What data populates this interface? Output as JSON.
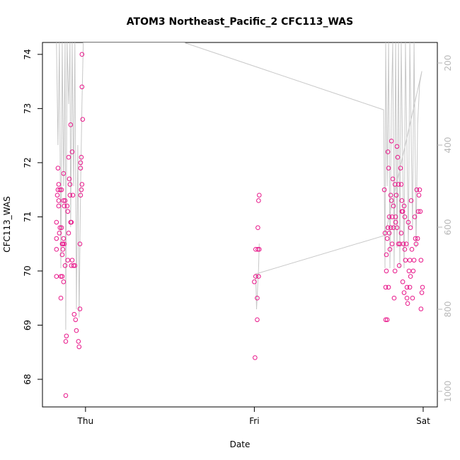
{
  "chart_data": {
    "type": "scatter",
    "title": "ATOM3 Northeast_Pacific_2 CFC113_WAS",
    "xlabel": "Date",
    "ylabel": "CFC113_WAS",
    "xlim": [
      -0.255,
      2.084
    ],
    "ylim": [
      67.49,
      74.22
    ],
    "y2lim": [
      1038,
      150
    ],
    "xticks": [
      {
        "value": 0,
        "label": "Thu"
      },
      {
        "value": 1,
        "label": "Fri"
      },
      {
        "value": 2,
        "label": "Sat"
      }
    ],
    "yticks": [
      68,
      69,
      70,
      71,
      72,
      73,
      74
    ],
    "y2ticks": [
      200,
      400,
      600,
      800,
      1000
    ],
    "series": [
      {
        "color": "#e8178a",
        "x": [
          -0.172,
          -0.172,
          -0.172,
          -0.172,
          -0.167,
          -0.163,
          -0.163,
          -0.159,
          -0.159,
          -0.159,
          -0.155,
          -0.151,
          -0.151,
          -0.146,
          -0.146,
          -0.142,
          -0.142,
          -0.138,
          -0.138,
          -0.138,
          -0.134,
          -0.134,
          -0.13,
          -0.13,
          -0.13,
          -0.13,
          -0.126,
          -0.126,
          -0.121,
          -0.121,
          -0.117,
          -0.117,
          -0.113,
          -0.109,
          -0.105,
          -0.105,
          -0.1,
          -0.1,
          -0.096,
          -0.092,
          -0.092,
          -0.088,
          -0.088,
          -0.084,
          -0.084,
          -0.079,
          -0.079,
          -0.075,
          -0.071,
          -0.067,
          -0.063,
          -0.059,
          -0.054,
          -0.042,
          -0.038,
          -0.033,
          -0.033,
          -0.029,
          -0.029,
          -0.029,
          -0.025,
          -0.025,
          -0.021,
          -0.021,
          -0.021,
          -0.017,
          1.0,
          1.004,
          1.008,
          1.008,
          1.017,
          1.017,
          1.021,
          1.021,
          1.025,
          1.029,
          1.025,
          1.029,
          1.77,
          1.774,
          1.778,
          1.778,
          1.782,
          1.782,
          1.787,
          1.787,
          1.791,
          1.791,
          1.795,
          1.795,
          1.799,
          1.799,
          1.803,
          1.808,
          1.808,
          1.812,
          1.812,
          1.816,
          1.816,
          1.82,
          1.824,
          1.824,
          1.828,
          1.833,
          1.833,
          1.837,
          1.837,
          1.841,
          1.845,
          1.845,
          1.849,
          1.854,
          1.854,
          1.858,
          1.862,
          1.866,
          1.87,
          1.87,
          1.874,
          1.874,
          1.879,
          1.879,
          1.883,
          1.887,
          1.887,
          1.891,
          1.891,
          1.895,
          1.9,
          1.904,
          1.904,
          1.908,
          1.912,
          1.916,
          1.921,
          1.921,
          1.925,
          1.925,
          1.929,
          1.933,
          1.937,
          1.941,
          1.946,
          1.95,
          1.954,
          1.958,
          1.962,
          1.967,
          1.971,
          1.975,
          1.979,
          1.983,
          1.987,
          1.987,
          1.992,
          1.996
        ],
        "values": [
          70.9,
          70.6,
          70.4,
          69.9,
          71.4,
          71.5,
          71.9,
          71.6,
          71.3,
          71.2,
          70.7,
          71.5,
          70.8,
          69.9,
          69.5,
          71.5,
          70.8,
          70.5,
          70.3,
          69.9,
          70.5,
          70.4,
          71.8,
          71.3,
          70.6,
          69.8,
          71.2,
          70.5,
          71.3,
          70.1,
          67.7,
          68.7,
          68.8,
          71.2,
          71.1,
          70.2,
          72.1,
          70.7,
          71.7,
          71.4,
          71.6,
          72.7,
          70.9,
          70.9,
          70.1,
          72.2,
          70.2,
          71.4,
          70.1,
          69.2,
          70.1,
          69.1,
          68.9,
          68.7,
          68.6,
          69.3,
          70.5,
          71.4,
          71.9,
          72.0,
          72.1,
          71.5,
          71.6,
          74.0,
          73.4,
          72.8,
          69.8,
          68.4,
          69.9,
          70.4,
          69.1,
          69.5,
          70.8,
          70.4,
          71.3,
          71.4,
          69.9,
          70.4,
          71.5,
          70.7,
          69.7,
          69.1,
          70.3,
          70.0,
          69.1,
          70.6,
          70.8,
          72.2,
          71.9,
          69.7,
          70.7,
          71.0,
          70.4,
          70.8,
          71.4,
          71.3,
          72.4,
          71.0,
          70.5,
          71.7,
          70.8,
          71.2,
          69.5,
          71.6,
          70.0,
          71.0,
          70.9,
          71.4,
          72.3,
          70.8,
          72.1,
          71.6,
          70.5,
          70.1,
          70.5,
          71.9,
          70.7,
          71.6,
          71.3,
          71.1,
          71.1,
          69.8,
          70.5,
          71.2,
          69.6,
          71.0,
          70.4,
          70.2,
          70.5,
          69.5,
          69.7,
          69.4,
          70.9,
          70.0,
          70.2,
          69.7,
          69.9,
          70.8,
          71.3,
          70.4,
          69.5,
          70.0,
          70.2,
          71.0,
          70.6,
          70.5,
          71.5,
          70.6,
          71.1,
          71.4,
          71.5,
          71.1,
          69.3,
          70.2,
          69.6,
          69.7
        ]
      },
      {
        "type": "line",
        "axis": "y2",
        "color": "#c8c8c8",
        "x": [
          -0.172,
          -0.163,
          -0.155,
          -0.146,
          -0.138,
          -0.13,
          -0.121,
          -0.117,
          -0.109,
          -0.1,
          -0.092,
          -0.088,
          -0.079,
          -0.071,
          -0.063,
          -0.054,
          -0.046,
          -0.038,
          -0.029,
          -0.021,
          -0.013,
          0.582,
          1.766,
          1.774,
          1.778,
          1.787,
          1.795,
          1.803,
          1.812,
          1.82,
          1.828,
          1.837,
          1.845,
          1.854,
          1.862,
          1.87,
          1.887,
          1.895,
          1.912,
          1.921,
          1.937,
          1.946,
          1.958,
          1.967,
          1.979,
          1.992,
          1.774,
          1.008,
          1.013,
          1.025,
          1.029
        ],
        "values": [
          150,
          400,
          150,
          700,
          150,
          500,
          150,
          850,
          150,
          300,
          150,
          600,
          150,
          500,
          150,
          800,
          400,
          820,
          500,
          300,
          150,
          150,
          314,
          700,
          150,
          500,
          150,
          700,
          300,
          150,
          700,
          150,
          650,
          150,
          700,
          150,
          700,
          150,
          650,
          150,
          600,
          150,
          650,
          350,
          250,
          220,
          620,
          714,
          800,
          700,
          640
        ]
      }
    ]
  }
}
